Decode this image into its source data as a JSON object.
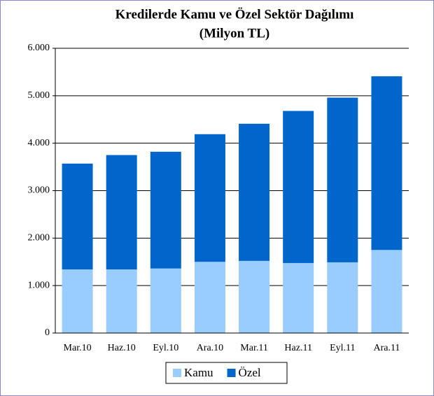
{
  "chart_data": {
    "type": "stacked_bar",
    "title": "Kredilerde Kamu ve Özel Sektör  Dağılımı",
    "subtitle": "(Milyon TL)",
    "categories": [
      "Mar.10",
      "Haz.10",
      "Eyl.10",
      "Ara.10",
      "Mar.11",
      "Haz.11",
      "Eyl.11",
      "Ara.11"
    ],
    "series": [
      {
        "name": "Kamu",
        "color": "#99ccff",
        "values": [
          1340,
          1340,
          1360,
          1500,
          1520,
          1475,
          1490,
          1750
        ]
      },
      {
        "name": "Özel",
        "color": "#0066cc",
        "values": [
          2230,
          2410,
          2460,
          2690,
          2890,
          3205,
          3470,
          3660
        ]
      }
    ],
    "ylim": [
      0,
      6000
    ],
    "yticks": [
      0,
      {
        "value": 1000,
        "label": "1.000"
      },
      {
        "value": 2000,
        "label": "2.000"
      },
      {
        "value": 3000,
        "label": "3.000"
      },
      {
        "value": 4000,
        "label": "4.000"
      },
      {
        "value": 5000,
        "label": "5.000"
      },
      {
        "value": 6000,
        "label": "6.000"
      }
    ],
    "grid": true,
    "legend": "bottom"
  }
}
